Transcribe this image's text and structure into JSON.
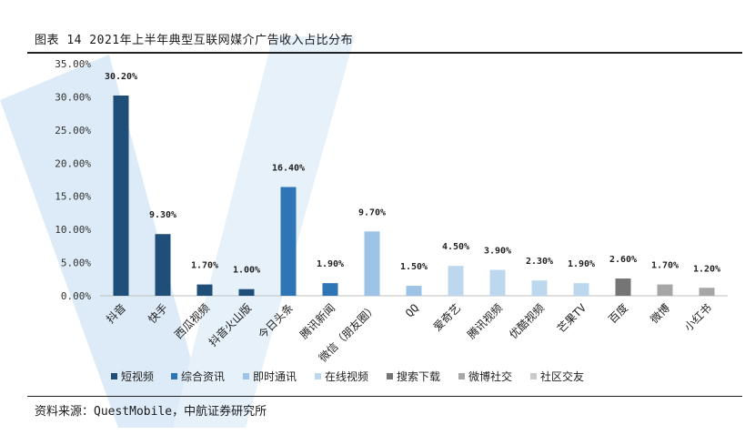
{
  "title": "图表 14 2021年上半年典型互联网媒介广告收入占比分布",
  "source": "资料来源：QuestMobile，中航证券研究所",
  "chart_data": {
    "type": "bar",
    "categories": [
      "抖音",
      "快手",
      "西瓜视频",
      "抖音火山版",
      "今日头条",
      "腾讯新闻",
      "微信（朋友圈）",
      "QQ",
      "爱奇艺",
      "腾讯视频",
      "优酷视频",
      "芒果TV",
      "百度",
      "微博",
      "小红书"
    ],
    "values": [
      30.2,
      9.3,
      1.7,
      1.0,
      16.4,
      1.9,
      9.7,
      1.5,
      4.5,
      3.9,
      2.3,
      1.9,
      2.6,
      1.7,
      1.2
    ],
    "value_labels": [
      "30.20%",
      "9.30%",
      "1.70%",
      "1.00%",
      "16.40%",
      "1.90%",
      "9.70%",
      "1.50%",
      "4.50%",
      "3.90%",
      "2.30%",
      "1.90%",
      "2.60%",
      "1.70%",
      "1.20%"
    ],
    "groups": [
      0,
      0,
      0,
      0,
      1,
      1,
      2,
      2,
      3,
      3,
      3,
      3,
      4,
      5,
      5
    ],
    "legend": [
      {
        "name": "短视频",
        "color": "#1f4e79"
      },
      {
        "name": "综合资讯",
        "color": "#2e75b6"
      },
      {
        "name": "即时通讯",
        "color": "#9dc3e6"
      },
      {
        "name": "在线视频",
        "color": "#bdd7ee"
      },
      {
        "name": "搜索下载",
        "color": "#757575"
      },
      {
        "name": "微博社交",
        "color": "#a6a6a6"
      },
      {
        "name": "社区交友",
        "color": "#c9c9c9"
      }
    ],
    "yticks": [
      "0.00%",
      "5.00%",
      "10.00%",
      "15.00%",
      "20.00%",
      "25.00%",
      "30.00%",
      "35.00%"
    ],
    "ylim": [
      0,
      35
    ],
    "legend_position": "bottom",
    "grid": false
  }
}
